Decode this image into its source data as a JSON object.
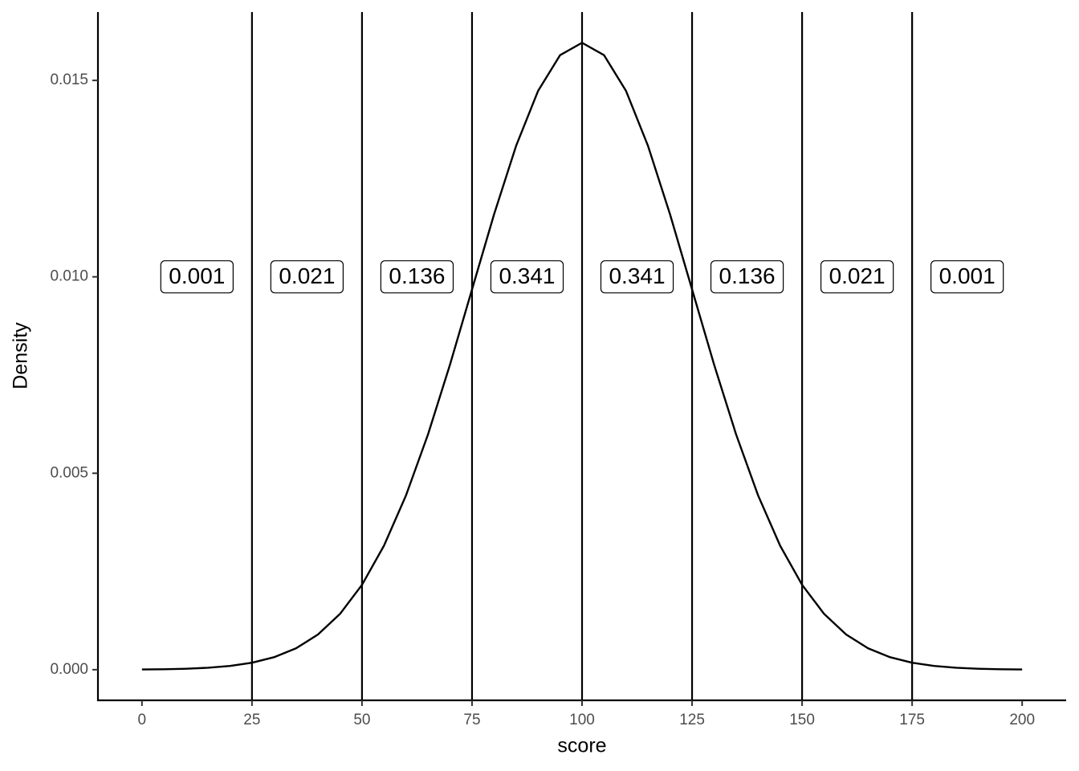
{
  "chart_data": {
    "type": "line",
    "x_label": "score",
    "y_label": "Density",
    "x": [
      0,
      5,
      10,
      15,
      20,
      25,
      30,
      35,
      40,
      45,
      50,
      55,
      60,
      65,
      70,
      75,
      80,
      85,
      90,
      95,
      100,
      105,
      110,
      115,
      120,
      125,
      130,
      135,
      140,
      145,
      150,
      155,
      160,
      165,
      170,
      175,
      180,
      185,
      190,
      195,
      200
    ],
    "series": [
      {
        "color": "#000000",
        "values": [
          5.3e-06,
          1.17e-05,
          2.45e-05,
          4.93e-05,
          9.54e-05,
          0.000177,
          0.000317,
          0.000543,
          0.000896,
          0.001419,
          0.00216,
          0.003158,
          0.004437,
          0.005989,
          0.007767,
          0.009679,
          0.011588,
          0.013329,
          0.014731,
          0.015642,
          0.015958,
          0.015642,
          0.014731,
          0.013329,
          0.011588,
          0.009679,
          0.007767,
          0.005989,
          0.004437,
          0.003158,
          0.00216,
          0.001419,
          0.000896,
          0.000543,
          0.000317,
          0.000177,
          9.54e-05,
          4.93e-05,
          2.45e-05,
          1.17e-05,
          5.3e-06
        ]
      }
    ],
    "vlines": [
      25,
      50,
      75,
      100,
      125,
      150,
      175
    ],
    "annotations": [
      {
        "x": 12.5,
        "y": 0.01,
        "text": "0.001"
      },
      {
        "x": 37.5,
        "y": 0.01,
        "text": "0.021"
      },
      {
        "x": 62.5,
        "y": 0.01,
        "text": "0.136"
      },
      {
        "x": 87.5,
        "y": 0.01,
        "text": "0.341"
      },
      {
        "x": 112.5,
        "y": 0.01,
        "text": "0.341"
      },
      {
        "x": 137.5,
        "y": 0.01,
        "text": "0.136"
      },
      {
        "x": 162.5,
        "y": 0.01,
        "text": "0.021"
      },
      {
        "x": 187.5,
        "y": 0.01,
        "text": "0.001"
      }
    ],
    "xlim": [
      -10,
      210
    ],
    "ylim": [
      -0.00078,
      0.01674
    ],
    "xticks": [
      0,
      25,
      50,
      75,
      100,
      125,
      150,
      175,
      200
    ],
    "yticks": [
      {
        "value": 0,
        "label": "0.000"
      },
      {
        "value": 0.005,
        "label": "0.005"
      },
      {
        "value": 0.01,
        "label": "0.010"
      },
      {
        "value": 0.015,
        "label": "0.015"
      }
    ]
  }
}
